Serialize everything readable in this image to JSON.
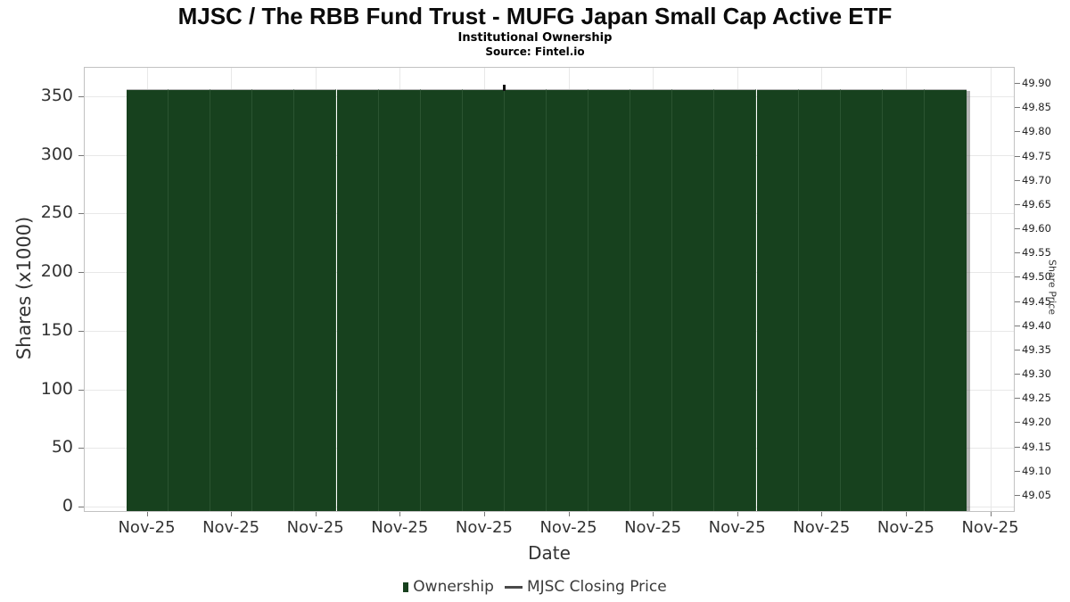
{
  "header": {
    "title": "MJSC / The RBB Fund Trust - MUFG Japan Small Cap Active ETF",
    "subtitle": "Institutional Ownership",
    "source": "Source: Fintel.io"
  },
  "chart_data": {
    "type": "bar",
    "title": "MJSC / The RBB Fund Trust - MUFG Japan Small Cap Active ETF",
    "subtitle": "Institutional Ownership",
    "source": "Source: Fintel.io",
    "xlabel": "Date",
    "ylabel_left": "Shares (x1000)",
    "ylabel_right": "Share Price",
    "x_tick_labels": [
      "Nov-25",
      "Nov-25",
      "Nov-25",
      "Nov-25",
      "Nov-25",
      "Nov-25",
      "Nov-25",
      "Nov-25",
      "Nov-25",
      "Nov-25",
      "Nov-25"
    ],
    "left_axis": {
      "ticks": [
        0,
        50,
        100,
        150,
        200,
        250,
        300,
        350
      ],
      "ylim": [
        -4,
        375
      ]
    },
    "right_axis": {
      "ticks": [
        49.05,
        49.1,
        49.15,
        49.2,
        49.25,
        49.3,
        49.35,
        49.4,
        49.45,
        49.5,
        49.55,
        49.6,
        49.65,
        49.7,
        49.75,
        49.8,
        49.85,
        49.9
      ],
      "ylim": [
        49.02,
        49.93
      ]
    },
    "grid": true,
    "legend_position": "bottom",
    "series": [
      {
        "name": "Ownership",
        "type": "bar",
        "color": "#17411e",
        "values": [
          356,
          356,
          356,
          356,
          356,
          356,
          356,
          356,
          356,
          356,
          356,
          356,
          356,
          356,
          356,
          356,
          356,
          356,
          356,
          356
        ]
      },
      {
        "name": "MJSC Closing Price",
        "type": "line",
        "color": "#101010",
        "points": [
          {
            "x_index": 9,
            "value": 49.89
          }
        ]
      }
    ]
  },
  "legend": {
    "items": [
      {
        "label": "Ownership",
        "marker": "square",
        "color": "#17411e"
      },
      {
        "label": "MJSC Closing Price",
        "marker": "line",
        "color": "#4a4a4a"
      }
    ]
  },
  "colors": {
    "bar": "#17411e",
    "bar_separator": "#2b5431",
    "bar_top_edge": "#b3b3b3",
    "bar_shadow": "rgba(110,110,110,0.5)",
    "grid": "#e8e8e8",
    "plot_border": "#c2c2c2",
    "tick_mark": "#777777",
    "price_point": "#101010"
  }
}
